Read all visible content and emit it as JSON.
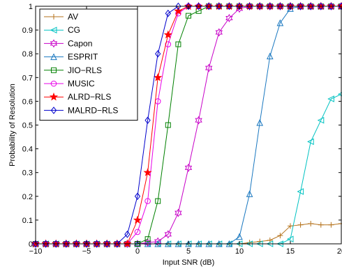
{
  "chart_data": {
    "type": "line",
    "title": "",
    "xlabel": "Input SNR (dB)",
    "ylabel": "Probability of Resolution",
    "xlim": [
      -10,
      20
    ],
    "ylim": [
      0,
      1
    ],
    "xticks": [
      -10,
      -5,
      0,
      5,
      10,
      15,
      20
    ],
    "yticks": [
      0,
      0.1,
      0.2,
      0.3,
      0.4,
      0.5,
      0.6,
      0.7,
      0.8,
      0.9,
      1
    ],
    "xtick_labels": [
      "−10",
      "−5",
      "0",
      "5",
      "10",
      "15",
      "20"
    ],
    "ytick_labels": [
      "0",
      "0.1",
      "0.2",
      "0.3",
      "0.4",
      "0.5",
      "0.6",
      "0.7",
      "0.8",
      "0.9",
      "1"
    ],
    "legend_position": "top-left",
    "grid": false,
    "x": [
      -10,
      -9,
      -8,
      -7,
      -6,
      -5,
      -4,
      -3,
      -2,
      -1,
      0,
      1,
      2,
      3,
      4,
      5,
      6,
      7,
      8,
      9,
      10,
      11,
      12,
      13,
      14,
      15,
      16,
      17,
      18,
      19,
      20
    ],
    "series": [
      {
        "name": "AV",
        "color": "#b5731c",
        "marker": "plus",
        "values": [
          0,
          0,
          0,
          0,
          0,
          0,
          0,
          0,
          0,
          0,
          0,
          0,
          0,
          0,
          0,
          0,
          0,
          0,
          0,
          0,
          0,
          0.005,
          0.01,
          0.015,
          0.035,
          0.075,
          0.08,
          0.085,
          0.08,
          0.08,
          0.085
        ]
      },
      {
        "name": "CG",
        "color": "#00c2c2",
        "marker": "triangle-left",
        "values": [
          0,
          0,
          0,
          0,
          0,
          0,
          0,
          0,
          0,
          0,
          0,
          0,
          0,
          0,
          0,
          0,
          0,
          0,
          0,
          0,
          0,
          0,
          0,
          0,
          0,
          0.02,
          0.22,
          0.43,
          0.52,
          0.61,
          0.63
        ]
      },
      {
        "name": "Capon",
        "color": "#c800c8",
        "marker": "hexagram",
        "values": [
          0,
          0,
          0,
          0,
          0,
          0,
          0,
          0,
          0,
          0,
          0,
          0.005,
          0.01,
          0.04,
          0.13,
          0.32,
          0.52,
          0.74,
          0.89,
          0.95,
          0.99,
          1,
          1,
          1,
          1,
          1,
          1,
          1,
          1,
          1,
          1
        ]
      },
      {
        "name": "ESPRIT",
        "color": "#1a78c0",
        "marker": "triangle-up",
        "values": [
          0,
          0,
          0,
          0,
          0,
          0,
          0,
          0,
          0,
          0,
          0,
          0,
          0,
          0,
          0,
          0,
          0,
          0,
          0,
          0,
          0.03,
          0.21,
          0.51,
          0.79,
          0.93,
          0.99,
          1,
          1,
          1,
          1,
          1
        ]
      },
      {
        "name": "JIO−RLS",
        "color": "#008000",
        "marker": "square",
        "values": [
          0,
          0,
          0,
          0,
          0,
          0,
          0,
          0,
          0,
          0,
          0,
          0.02,
          0.18,
          0.5,
          0.84,
          0.96,
          0.98,
          1,
          1,
          1,
          1,
          1,
          1,
          1,
          1,
          1,
          1,
          1,
          1,
          1,
          1
        ]
      },
      {
        "name": "MUSIC",
        "color": "#e800e8",
        "marker": "circle",
        "values": [
          0,
          0,
          0,
          0,
          0,
          0,
          0,
          0,
          0,
          0,
          0.05,
          0.18,
          0.6,
          0.84,
          0.97,
          1,
          1,
          1,
          1,
          1,
          1,
          1,
          1,
          1,
          1,
          1,
          1,
          1,
          1,
          1,
          1
        ]
      },
      {
        "name": "ALRD−RLS",
        "color": "#ff0000",
        "marker": "star",
        "values": [
          0,
          0,
          0,
          0,
          0,
          0,
          0,
          0,
          0,
          0,
          0.1,
          0.3,
          0.7,
          0.88,
          0.98,
          1,
          1,
          1,
          1,
          1,
          1,
          1,
          1,
          1,
          1,
          1,
          1,
          1,
          1,
          1,
          1
        ]
      },
      {
        "name": "MALRD−RLS",
        "color": "#0000cc",
        "marker": "diamond",
        "values": [
          0,
          0,
          0,
          0,
          0,
          0,
          0,
          0,
          0,
          0.04,
          0.2,
          0.52,
          0.8,
          0.97,
          1,
          1,
          1,
          1,
          1,
          1,
          1,
          1,
          1,
          1,
          1,
          1,
          1,
          1,
          1,
          1,
          1
        ]
      }
    ]
  }
}
